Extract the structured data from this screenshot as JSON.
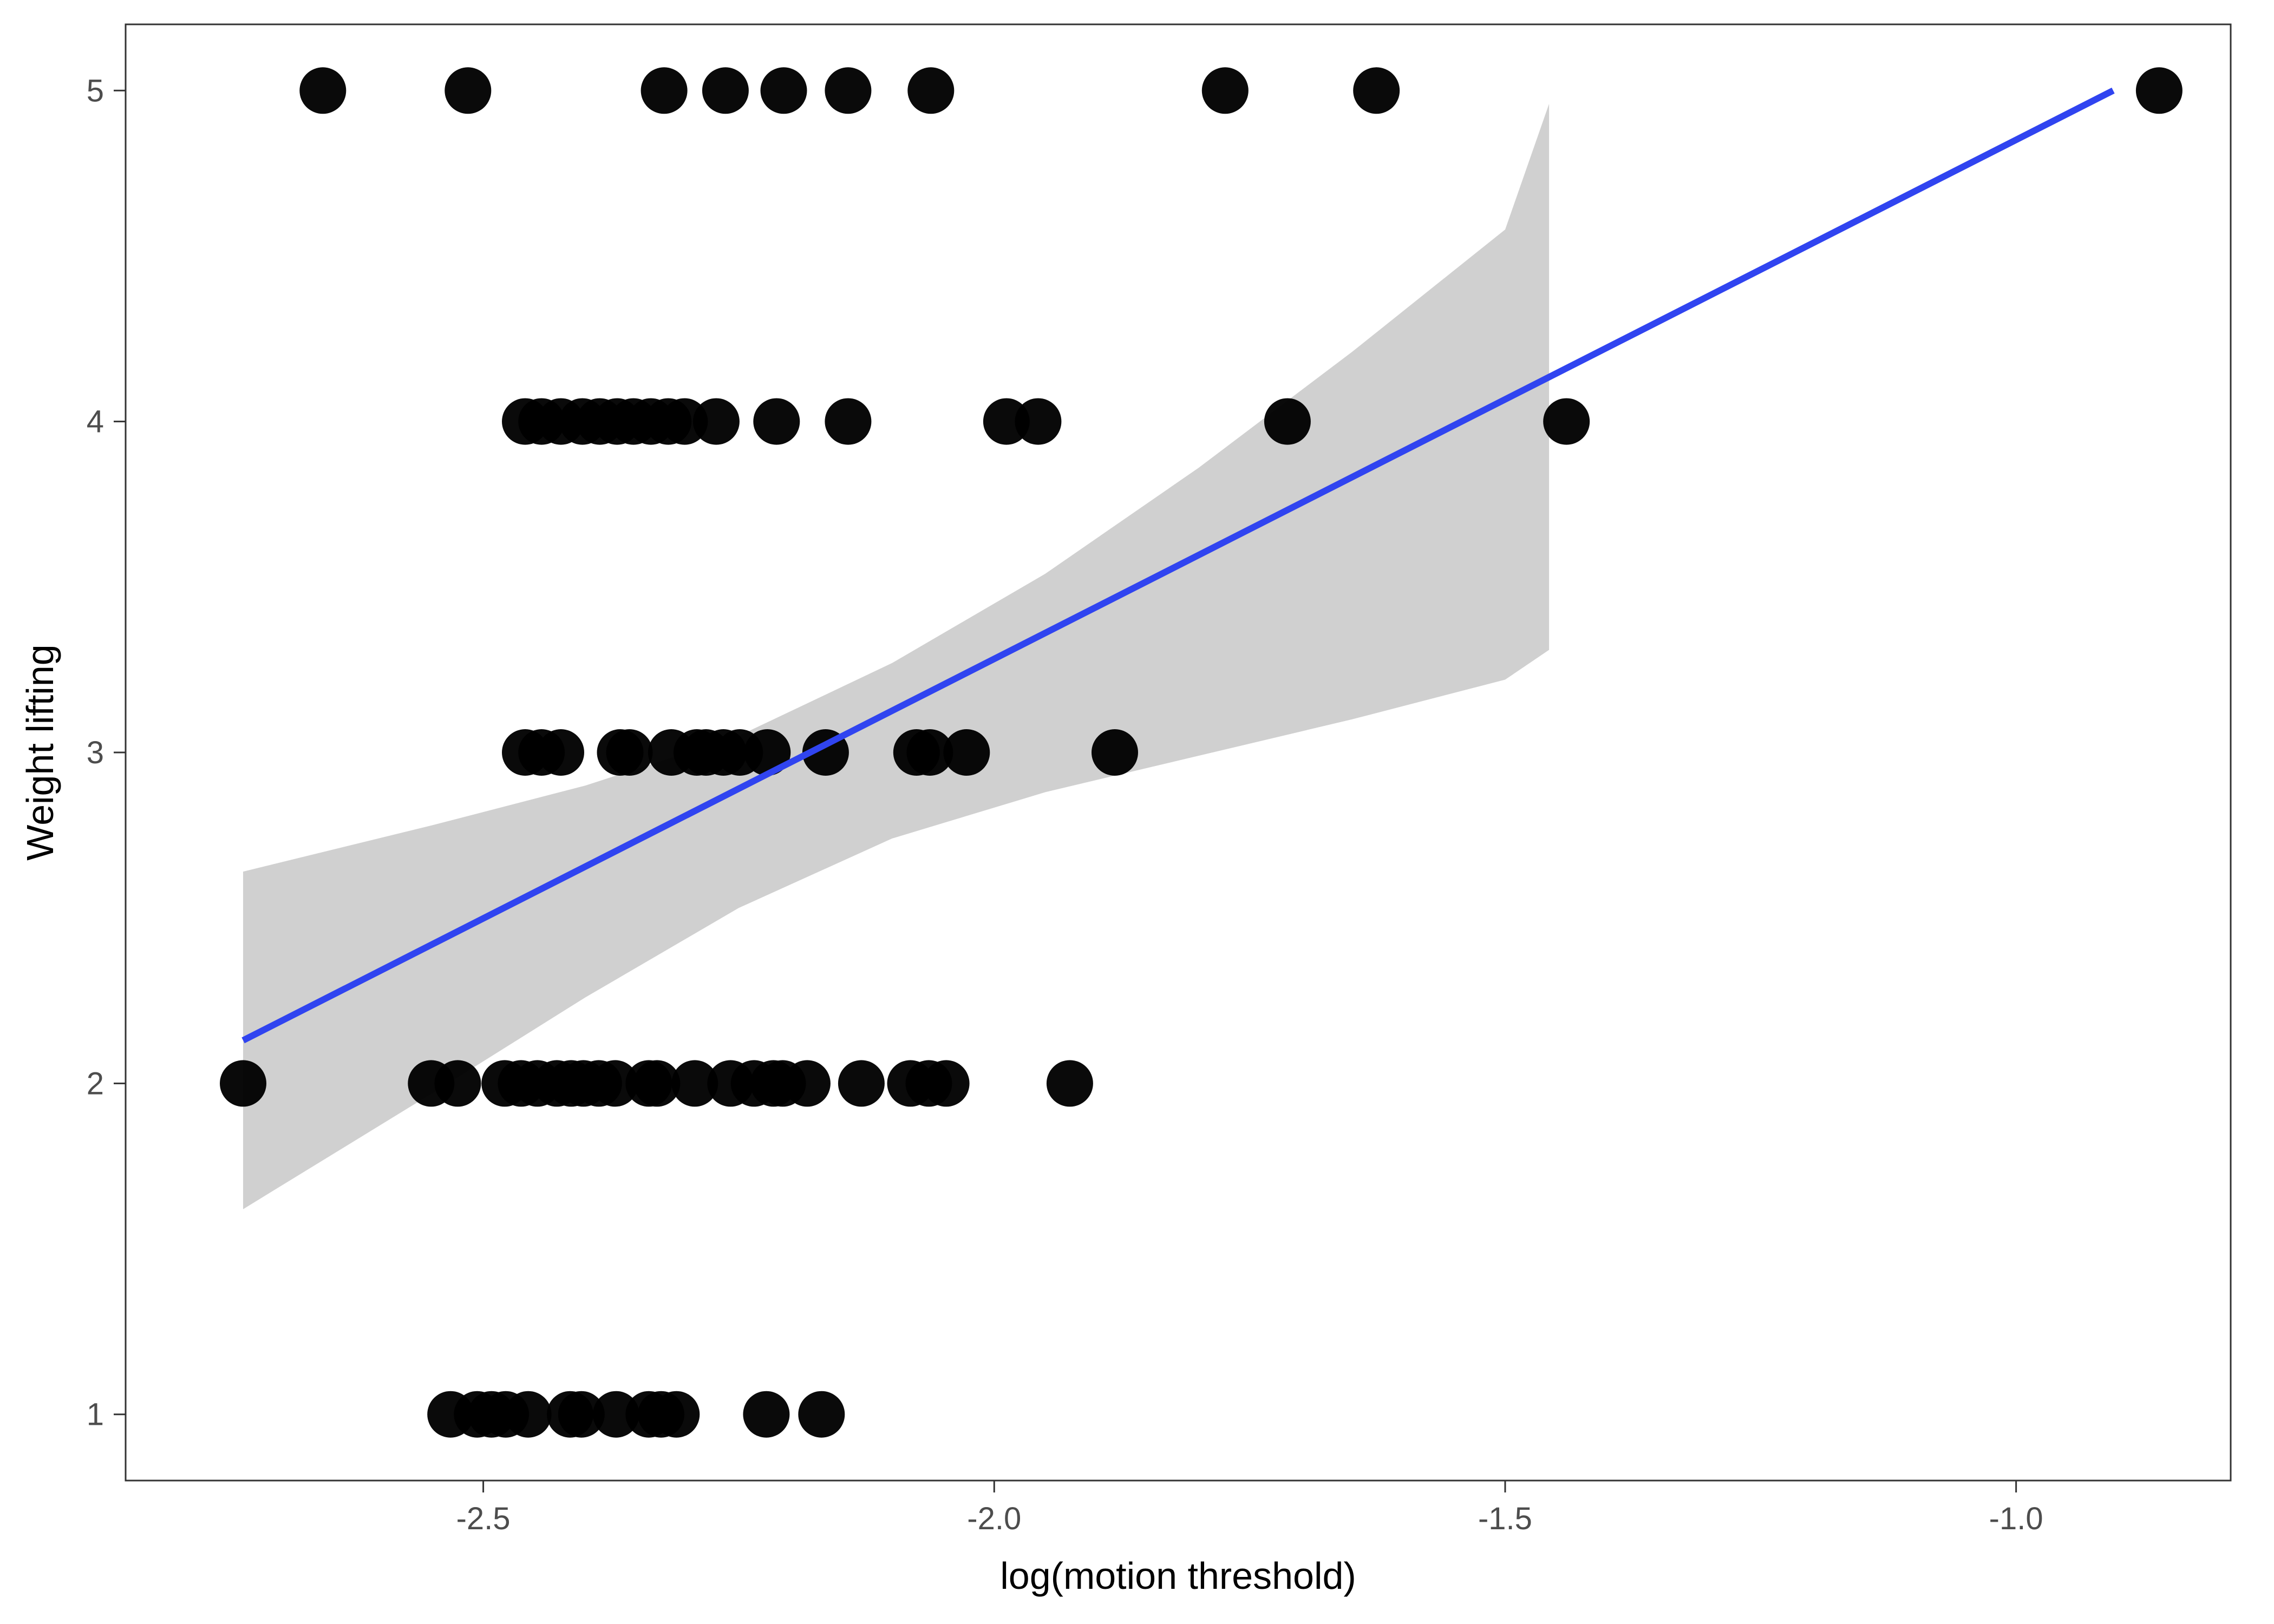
{
  "chart_data": {
    "type": "scatter",
    "xlabel": "log(motion threshold)",
    "ylabel": "Weight lifting",
    "xlim": [
      -2.85,
      -0.79
    ],
    "ylim": [
      0.8,
      5.2
    ],
    "x_ticks": [
      -2.5,
      -2.0,
      -1.5,
      -1.0
    ],
    "x_tick_labels": [
      "-2.5",
      "-2.0",
      "-1.5",
      "-1.0"
    ],
    "y_ticks": [
      1,
      2,
      3,
      4,
      5
    ],
    "y_tick_labels": [
      "1",
      "2",
      "3",
      "4",
      "5"
    ],
    "grid": false,
    "colors": {
      "points": "#000000",
      "fit_line": "#3044f0",
      "confidence_band": "#bebebe"
    },
    "points": [
      {
        "x": -2.657,
        "y": 5
      },
      {
        "x": -2.515,
        "y": 5
      },
      {
        "x": -2.323,
        "y": 5
      },
      {
        "x": -2.263,
        "y": 5
      },
      {
        "x": -2.206,
        "y": 5
      },
      {
        "x": -2.143,
        "y": 5
      },
      {
        "x": -2.062,
        "y": 5
      },
      {
        "x": -1.774,
        "y": 5
      },
      {
        "x": -1.626,
        "y": 5
      },
      {
        "x": -0.86,
        "y": 5
      },
      {
        "x": -2.459,
        "y": 4
      },
      {
        "x": -2.443,
        "y": 4
      },
      {
        "x": -2.424,
        "y": 4
      },
      {
        "x": -2.403,
        "y": 4
      },
      {
        "x": -2.386,
        "y": 4
      },
      {
        "x": -2.369,
        "y": 4
      },
      {
        "x": -2.353,
        "y": 4
      },
      {
        "x": -2.336,
        "y": 4
      },
      {
        "x": -2.319,
        "y": 4
      },
      {
        "x": -2.303,
        "y": 4
      },
      {
        "x": -2.272,
        "y": 4
      },
      {
        "x": -2.213,
        "y": 4
      },
      {
        "x": -2.143,
        "y": 4
      },
      {
        "x": -1.988,
        "y": 4
      },
      {
        "x": -1.957,
        "y": 4
      },
      {
        "x": -1.713,
        "y": 4
      },
      {
        "x": -1.44,
        "y": 4
      },
      {
        "x": -2.459,
        "y": 3
      },
      {
        "x": -2.443,
        "y": 3
      },
      {
        "x": -2.424,
        "y": 3
      },
      {
        "x": -2.366,
        "y": 3
      },
      {
        "x": -2.357,
        "y": 3
      },
      {
        "x": -2.316,
        "y": 3
      },
      {
        "x": -2.291,
        "y": 3
      },
      {
        "x": -2.282,
        "y": 3
      },
      {
        "x": -2.265,
        "y": 3
      },
      {
        "x": -2.249,
        "y": 3
      },
      {
        "x": -2.222,
        "y": 3
      },
      {
        "x": -2.165,
        "y": 3
      },
      {
        "x": -2.076,
        "y": 3
      },
      {
        "x": -2.063,
        "y": 3
      },
      {
        "x": -2.027,
        "y": 3
      },
      {
        "x": -1.882,
        "y": 3
      },
      {
        "x": -2.735,
        "y": 2
      },
      {
        "x": -2.551,
        "y": 2
      },
      {
        "x": -2.525,
        "y": 2
      },
      {
        "x": -2.479,
        "y": 2
      },
      {
        "x": -2.463,
        "y": 2
      },
      {
        "x": -2.447,
        "y": 2
      },
      {
        "x": -2.428,
        "y": 2
      },
      {
        "x": -2.414,
        "y": 2
      },
      {
        "x": -2.402,
        "y": 2
      },
      {
        "x": -2.387,
        "y": 2
      },
      {
        "x": -2.371,
        "y": 2
      },
      {
        "x": -2.338,
        "y": 2
      },
      {
        "x": -2.33,
        "y": 2
      },
      {
        "x": -2.293,
        "y": 2
      },
      {
        "x": -2.258,
        "y": 2
      },
      {
        "x": -2.235,
        "y": 2
      },
      {
        "x": -2.216,
        "y": 2
      },
      {
        "x": -2.207,
        "y": 2
      },
      {
        "x": -2.183,
        "y": 2
      },
      {
        "x": -2.13,
        "y": 2
      },
      {
        "x": -2.082,
        "y": 2
      },
      {
        "x": -2.064,
        "y": 2
      },
      {
        "x": -2.047,
        "y": 2
      },
      {
        "x": -1.926,
        "y": 2
      },
      {
        "x": -2.532,
        "y": 1
      },
      {
        "x": -2.506,
        "y": 1
      },
      {
        "x": -2.492,
        "y": 1
      },
      {
        "x": -2.478,
        "y": 1
      },
      {
        "x": -2.456,
        "y": 1
      },
      {
        "x": -2.415,
        "y": 1
      },
      {
        "x": -2.404,
        "y": 1
      },
      {
        "x": -2.37,
        "y": 1
      },
      {
        "x": -2.338,
        "y": 1
      },
      {
        "x": -2.326,
        "y": 1
      },
      {
        "x": -2.311,
        "y": 1
      },
      {
        "x": -2.223,
        "y": 1
      },
      {
        "x": -2.169,
        "y": 1
      }
    ],
    "fit_line": [
      {
        "x": -2.735,
        "y": 2.13
      },
      {
        "x": -0.905,
        "y": 5.0
      }
    ],
    "confidence_band": {
      "x": [
        -2.735,
        -2.55,
        -2.4,
        -2.25,
        -2.1,
        -1.95,
        -1.8,
        -1.65,
        -1.5,
        -1.457
      ],
      "lower": [
        1.62,
        1.97,
        2.26,
        2.53,
        2.74,
        2.88,
        2.99,
        3.1,
        3.22,
        3.31
      ],
      "upper": [
        2.64,
        2.78,
        2.9,
        3.05,
        3.27,
        3.54,
        3.86,
        4.21,
        4.58,
        4.96
      ]
    }
  }
}
